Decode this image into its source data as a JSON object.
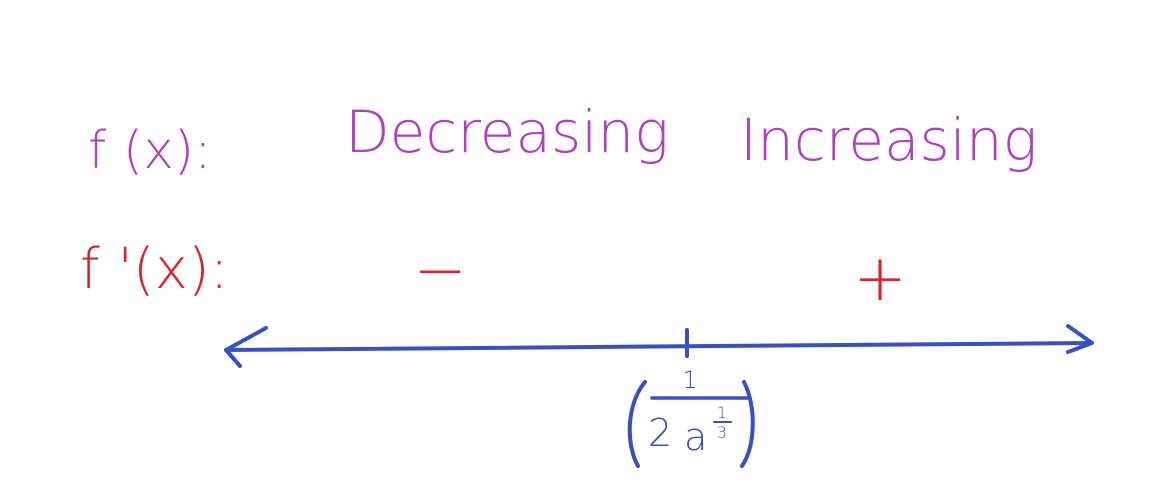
{
  "rows": {
    "function_label": "f (x):",
    "derivative_label": "f '(x):"
  },
  "intervals": [
    {
      "behavior": "Decreasing",
      "sign": "−"
    },
    {
      "behavior": "Increasing",
      "sign": "+"
    }
  ],
  "critical_point": {
    "numerator": "1",
    "coefficient": "2",
    "base": "a",
    "exponent_numerator": "1",
    "exponent_denominator": "3"
  },
  "colors": {
    "function_row": "#b040c0",
    "derivative_row": "#e0202a",
    "number_line": "#3650c8"
  }
}
